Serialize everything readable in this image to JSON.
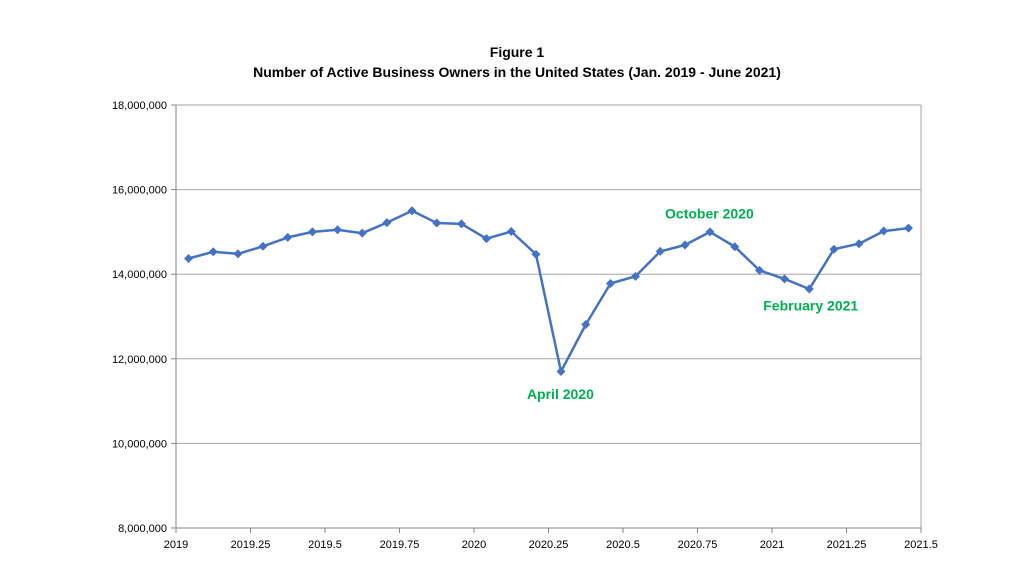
{
  "chart_data": {
    "type": "line",
    "title": "Figure 1",
    "subtitle": "Number of Active Business Owners in the United States (Jan. 2019 - June 2021)",
    "xlabel": "",
    "ylabel": "",
    "xlim": [
      2019,
      2021.5
    ],
    "ylim": [
      8000000,
      18000000
    ],
    "x_ticks": [
      2019,
      2019.25,
      2019.5,
      2019.75,
      2020,
      2020.25,
      2020.5,
      2020.75,
      2021,
      2021.25,
      2021.5
    ],
    "x_tick_labels": [
      "2019",
      "2019.25",
      "2019.5",
      "2019.75",
      "2020",
      "2020.25",
      "2020.5",
      "2020.75",
      "2021",
      "2021.25",
      "2021.5"
    ],
    "y_ticks": [
      8000000,
      10000000,
      12000000,
      14000000,
      16000000,
      18000000
    ],
    "y_tick_labels": [
      "8,000,000",
      "10,000,000",
      "12,000,000",
      "14,000,000",
      "16,000,000",
      "18,000,000"
    ],
    "grid": "horizontal",
    "line_color": "#4472C4",
    "series": [
      {
        "x": [
          2019.042,
          2019.125,
          2019.208,
          2019.292,
          2019.375,
          2019.458,
          2019.542,
          2019.625,
          2019.708,
          2019.792,
          2019.875,
          2019.958,
          2020.042,
          2020.125,
          2020.208,
          2020.292,
          2020.375,
          2020.458,
          2020.542,
          2020.625,
          2020.708,
          2020.792,
          2020.875,
          2020.958,
          2021.042,
          2021.125,
          2021.208,
          2021.292,
          2021.375,
          2021.458
        ],
        "values": [
          14370000,
          14530000,
          14480000,
          14660000,
          14870000,
          15000000,
          15050000,
          14970000,
          15220000,
          15500000,
          15210000,
          15190000,
          14840000,
          15010000,
          14470000,
          11700000,
          12810000,
          13780000,
          13950000,
          14540000,
          14690000,
          15000000,
          14650000,
          14090000,
          13890000,
          13650000,
          14590000,
          14720000,
          15020000,
          15090000
        ]
      }
    ],
    "annotations": [
      {
        "text": "October 2020",
        "x": 2020.79,
        "y": 15440000,
        "color": "#00B050"
      },
      {
        "text": "February 2021",
        "x": 2021.13,
        "y": 13260000,
        "color": "#00B050"
      },
      {
        "text": "April 2020",
        "x": 2020.29,
        "y": 11170000,
        "color": "#00B050"
      }
    ]
  }
}
